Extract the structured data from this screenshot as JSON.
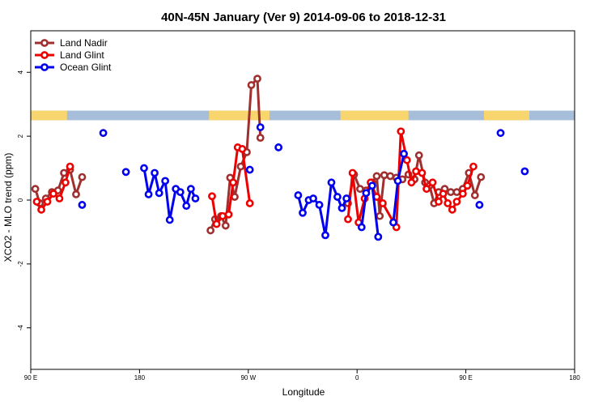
{
  "chart_data": {
    "type": "line",
    "title": "40N-45N January (Ver 9)   2014-09-06 to 2018-12-31",
    "xlabel": "Longitude",
    "ylabel": "XCO2 - MLO trend (ppm)",
    "xlim": [
      0,
      360
    ],
    "ylim": [
      -5.3,
      5.3
    ],
    "x_ticks": [
      {
        "value": 0,
        "label": "90 E"
      },
      {
        "value": 72,
        "label": "180"
      },
      {
        "value": 144,
        "label": "90 W"
      },
      {
        "value": 216,
        "label": "0"
      },
      {
        "value": 288,
        "label": "90 E"
      },
      {
        "value": 360,
        "label": "180"
      }
    ],
    "y_ticks": [
      {
        "value": -4,
        "label": "-4"
      },
      {
        "value": -2,
        "label": "-2"
      },
      {
        "value": 0,
        "label": "0"
      },
      {
        "value": 2,
        "label": "2"
      },
      {
        "value": 4,
        "label": "4"
      }
    ],
    "grid": false,
    "legend_position": "top-left",
    "land_mask": {
      "y_range": [
        2.5,
        2.8
      ],
      "ocean_color": "#a7bedb",
      "land_color": "#f8d66d",
      "land_segments": [
        [
          0,
          24
        ],
        [
          118,
          158
        ],
        [
          205,
          250
        ],
        [
          300,
          330
        ]
      ]
    },
    "series": [
      {
        "name": "Land Nadir",
        "color": "#a0302f",
        "points": [
          [
            3,
            0.35
          ],
          [
            6,
            -0.1
          ],
          [
            10,
            0.05
          ],
          [
            14,
            0.25
          ],
          [
            18,
            0.3
          ],
          [
            22,
            0.85
          ],
          [
            26,
            0.95
          ],
          [
            30,
            0.18
          ],
          [
            34,
            0.72
          ],
          null,
          [
            119,
            -0.95
          ],
          [
            122,
            -0.6
          ],
          [
            126,
            -0.5
          ],
          [
            129,
            -0.8
          ],
          [
            132,
            0.7
          ],
          [
            135,
            0.1
          ],
          [
            139,
            1.05
          ],
          [
            143,
            1.5
          ],
          [
            146,
            3.6
          ],
          [
            150,
            3.8
          ],
          [
            152,
            1.95
          ],
          null,
          [
            210,
            -0.1
          ],
          [
            214,
            0.8
          ],
          [
            218,
            0.35
          ],
          [
            222,
            0.3
          ],
          [
            226,
            0.55
          ],
          [
            229,
            0.75
          ],
          [
            231,
            -0.5
          ],
          [
            234,
            0.78
          ],
          [
            238,
            0.75
          ],
          [
            242,
            0.7
          ],
          [
            246,
            0.65
          ],
          [
            250,
            0.8
          ],
          [
            254,
            0.65
          ],
          [
            257,
            1.4
          ],
          [
            261,
            0.55
          ],
          [
            264,
            0.45
          ],
          [
            267,
            -0.1
          ],
          [
            270,
            0.25
          ],
          [
            274,
            0.35
          ],
          [
            278,
            0.25
          ],
          [
            282,
            0.25
          ],
          [
            286,
            0.35
          ],
          [
            290,
            0.85
          ],
          [
            294,
            0.15
          ],
          [
            298,
            0.72
          ]
        ]
      },
      {
        "name": "Land Glint",
        "color": "#ee0000",
        "points": [
          [
            4,
            -0.05
          ],
          [
            7,
            -0.3
          ],
          [
            11,
            -0.05
          ],
          [
            15,
            0.2
          ],
          [
            19,
            0.05
          ],
          [
            23,
            0.55
          ],
          [
            26,
            1.05
          ],
          null,
          [
            120,
            0.12
          ],
          [
            123,
            -0.75
          ],
          [
            127,
            -0.5
          ],
          [
            131,
            -0.45
          ],
          [
            134,
            0.55
          ],
          [
            137,
            1.65
          ],
          [
            140,
            1.6
          ],
          [
            145,
            -0.1
          ],
          null,
          [
            210,
            -0.6
          ],
          [
            213,
            0.85
          ],
          [
            217,
            -0.7
          ],
          [
            221,
            0.05
          ],
          [
            225,
            0.55
          ],
          [
            229,
            0.1
          ],
          [
            233,
            -0.1
          ],
          [
            242,
            -0.85
          ],
          [
            245,
            2.15
          ],
          [
            249,
            1.25
          ],
          [
            252,
            0.55
          ],
          [
            255,
            0.9
          ],
          [
            259,
            0.85
          ],
          [
            262,
            0.35
          ],
          [
            266,
            0.55
          ],
          [
            270,
            -0.05
          ],
          [
            273,
            0.2
          ],
          [
            276,
            -0.1
          ],
          [
            279,
            -0.3
          ],
          [
            282,
            -0.05
          ],
          [
            286,
            0.2
          ],
          [
            289,
            0.45
          ],
          [
            293,
            1.05
          ]
        ]
      },
      {
        "name": "Ocean Glint",
        "color": "#0000ee",
        "points": [
          [
            34,
            -0.15
          ],
          null,
          [
            48,
            2.1
          ],
          null,
          [
            63,
            0.88
          ],
          null,
          [
            75,
            1.0
          ],
          [
            78,
            0.18
          ],
          [
            82,
            0.85
          ],
          [
            85,
            0.22
          ],
          [
            89,
            0.6
          ],
          [
            92,
            -0.62
          ],
          [
            96,
            0.35
          ],
          [
            99,
            0.25
          ],
          [
            103,
            -0.18
          ],
          [
            106,
            0.35
          ],
          [
            109,
            0.05
          ],
          null,
          [
            145,
            0.95
          ],
          null,
          [
            152,
            2.28
          ],
          null,
          [
            164,
            1.65
          ],
          null,
          [
            177,
            0.15
          ],
          [
            180,
            -0.4
          ],
          [
            184,
            0.0
          ],
          [
            187,
            0.05
          ],
          [
            191,
            -0.15
          ],
          [
            195,
            -1.1
          ],
          [
            199,
            0.55
          ],
          [
            203,
            0.1
          ],
          [
            206,
            -0.25
          ],
          [
            209,
            0.05
          ],
          null,
          [
            219,
            -0.85
          ],
          [
            222,
            0.22
          ],
          [
            226,
            0.45
          ],
          [
            230,
            -1.15
          ],
          null,
          [
            240,
            -0.7
          ],
          [
            243,
            0.6
          ],
          [
            247,
            1.45
          ],
          null,
          [
            297,
            -0.15
          ],
          null,
          [
            311,
            2.1
          ],
          null,
          [
            327,
            0.9
          ]
        ]
      }
    ]
  }
}
